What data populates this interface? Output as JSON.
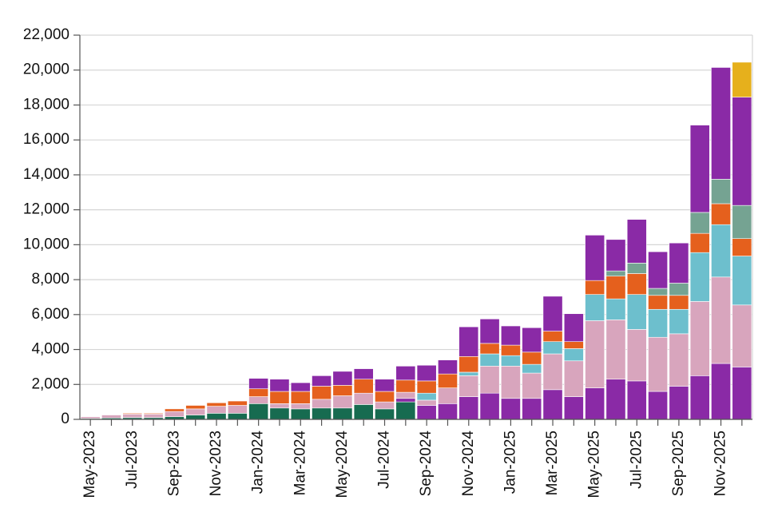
{
  "chart_data": {
    "type": "stacked_bar",
    "categories": [
      "May-2023",
      null,
      "Jul-2023",
      null,
      "Sep-2023",
      null,
      "Nov-2023",
      null,
      "Jan-2024",
      null,
      "Mar-2024",
      null,
      "May-2024",
      null,
      "Jul-2024",
      null,
      "Sep-2024",
      null,
      "Nov-2024",
      null,
      "Jan-2025",
      null,
      "Mar-2025",
      null,
      "May-2025",
      null,
      "Jul-2025",
      null,
      "Sep-2025",
      null,
      "Nov-2025",
      null
    ],
    "series": [
      {
        "color": "#176b50",
        "values": [
          50,
          80,
          100,
          100,
          150,
          250,
          350,
          350,
          900,
          650,
          600,
          650,
          650,
          850,
          600,
          1000,
          0,
          0,
          0,
          0,
          0,
          0,
          0,
          0,
          0,
          0,
          0,
          0,
          0,
          0,
          0,
          0
        ]
      },
      {
        "color": "#8a2aa6",
        "values": [
          0,
          0,
          0,
          0,
          0,
          0,
          0,
          0,
          0,
          0,
          0,
          0,
          0,
          0,
          0,
          200,
          800,
          900,
          1300,
          1500,
          1200,
          1200,
          1700,
          1300,
          1800,
          2300,
          2200,
          1600,
          1900,
          2500,
          3200,
          3000
        ]
      },
      {
        "color": "#d8a5bd",
        "values": [
          100,
          170,
          200,
          200,
          300,
          350,
          400,
          450,
          400,
          250,
          300,
          500,
          700,
          650,
          400,
          350,
          300,
          900,
          1200,
          1550,
          1850,
          1450,
          2050,
          2050,
          3850,
          3400,
          2950,
          3100,
          3000,
          4250,
          4950,
          3550
        ]
      },
      {
        "color": "#6dbfcd",
        "values": [
          0,
          0,
          0,
          0,
          0,
          0,
          0,
          0,
          0,
          0,
          0,
          0,
          0,
          0,
          0,
          0,
          400,
          0,
          200,
          700,
          600,
          500,
          700,
          700,
          1500,
          1200,
          2000,
          1600,
          1400,
          2800,
          3000,
          2800
        ]
      },
      {
        "color": "#e5601d",
        "values": [
          0,
          0,
          50,
          50,
          150,
          200,
          200,
          250,
          450,
          700,
          700,
          750,
          600,
          800,
          600,
          700,
          700,
          800,
          900,
          600,
          600,
          700,
          600,
          400,
          800,
          1300,
          1200,
          800,
          800,
          1100,
          1200,
          1000
        ]
      },
      {
        "color": "#75a392",
        "values": [
          0,
          0,
          0,
          0,
          0,
          0,
          0,
          0,
          0,
          0,
          0,
          0,
          0,
          0,
          0,
          0,
          0,
          0,
          0,
          0,
          0,
          0,
          0,
          0,
          0,
          300,
          600,
          400,
          700,
          1200,
          1400,
          1900
        ]
      },
      {
        "color": "#8a2aa6",
        "values": [
          0,
          0,
          0,
          0,
          0,
          0,
          0,
          0,
          600,
          700,
          500,
          600,
          800,
          600,
          700,
          800,
          900,
          800,
          1700,
          1400,
          1100,
          1400,
          2000,
          1600,
          2600,
          1800,
          2500,
          2100,
          2300,
          5000,
          6400,
          6200
        ]
      },
      {
        "color": "#e6b01c",
        "values": [
          0,
          0,
          0,
          0,
          0,
          0,
          0,
          0,
          0,
          0,
          0,
          0,
          0,
          0,
          0,
          0,
          0,
          0,
          0,
          0,
          0,
          0,
          0,
          0,
          0,
          0,
          0,
          0,
          0,
          0,
          0,
          2000
        ]
      }
    ],
    "ylim": [
      0,
      22000
    ],
    "yticks": [
      0,
      {
        "value": 2000,
        "label": "2,000"
      },
      {
        "value": 4000,
        "label": "4,000"
      },
      {
        "value": 6000,
        "label": "6,000"
      },
      {
        "value": 8000,
        "label": "8,000"
      },
      {
        "value": 10000,
        "label": "10,000"
      },
      {
        "value": 12000,
        "label": "12,000"
      },
      {
        "value": 14000,
        "label": "14,000"
      },
      {
        "value": 16000,
        "label": "16,000"
      },
      {
        "value": 18000,
        "label": "18,000"
      },
      {
        "value": 20000,
        "label": "20,000"
      },
      {
        "value": 22000,
        "label": "22,000"
      }
    ],
    "grid": true
  }
}
